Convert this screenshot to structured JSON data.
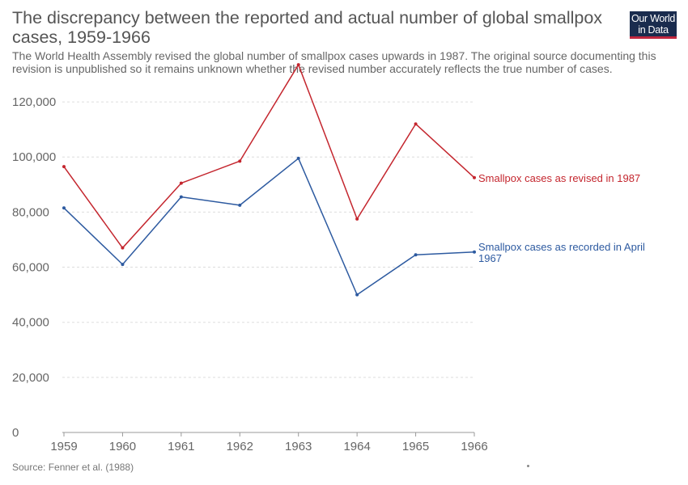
{
  "header": {
    "title": "The discrepancy between the reported and actual number of global smallpox cases, 1959-1966",
    "subtitle": "The World Health Assembly revised the global number of smallpox cases upwards in 1987. The original source documenting this revision is unpublished so it remains unknown whether the revised number accurately reflects the true number of cases.",
    "logo_line1": "Our World",
    "logo_line2": "in Data",
    "logo_icon": "owid-logo"
  },
  "footer": {
    "source": "Source: Fenner et al. (1988)"
  },
  "chart_data": {
    "type": "line",
    "title": "The discrepancy between the reported and actual number of global smallpox cases, 1959-1966",
    "x": [
      1959,
      1960,
      1961,
      1962,
      1963,
      1964,
      1965,
      1966
    ],
    "ylim": [
      0,
      130000
    ],
    "yticks": [
      0,
      20000,
      40000,
      60000,
      80000,
      100000,
      120000
    ],
    "ytick_labels": [
      "0",
      "20,000",
      "40,000",
      "60,000",
      "80,000",
      "100,000",
      "120,000"
    ],
    "xtick_labels": [
      "1959",
      "1960",
      "1961",
      "1962",
      "1963",
      "1964",
      "1965",
      "1966"
    ],
    "grid": true,
    "legend": "inline-right",
    "series": [
      {
        "name": "Smallpox cases as revised in 1987",
        "label_lines": [
          "Smallpox cases as revised in 1987"
        ],
        "color": "#c4262e",
        "values": [
          96500,
          67000,
          90500,
          98500,
          133500,
          77500,
          112000,
          92500
        ]
      },
      {
        "name": "Smallpox cases as recorded in April 1967",
        "label_lines": [
          "Smallpox cases as recorded in April",
          "1967"
        ],
        "color": "#2d5aa0",
        "values": [
          81500,
          61000,
          85500,
          82500,
          99500,
          50000,
          64500,
          65500
        ]
      }
    ]
  }
}
